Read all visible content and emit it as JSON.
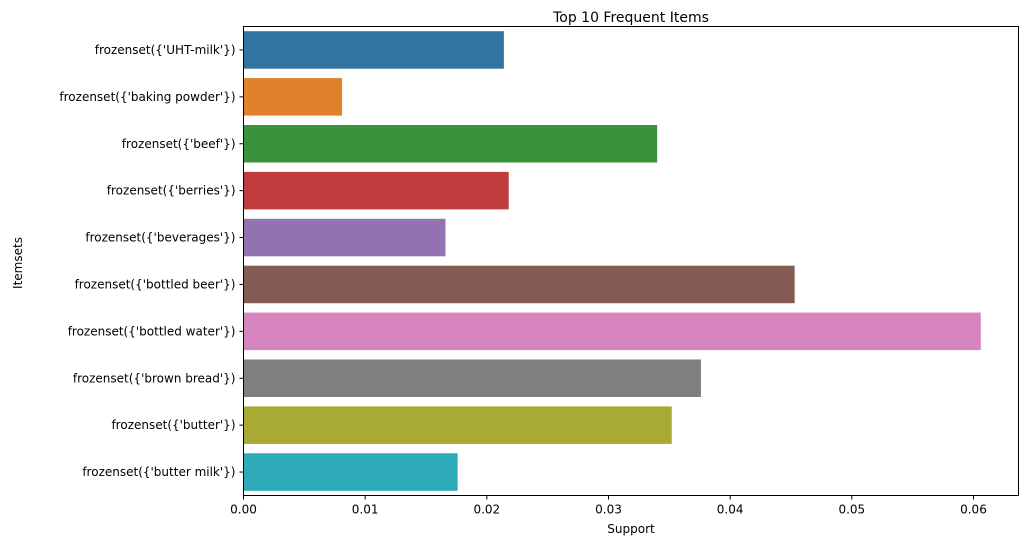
{
  "chart_data": {
    "type": "bar",
    "orientation": "horizontal",
    "title": "Top 10 Frequent Items",
    "xlabel": "Support",
    "ylabel": "Itemsets",
    "xlim": [
      0,
      0.0637
    ],
    "xticks": [
      0.0,
      0.01,
      0.02,
      0.03,
      0.04,
      0.05,
      0.06
    ],
    "xtick_labels": [
      "0.00",
      "0.01",
      "0.02",
      "0.03",
      "0.04",
      "0.05",
      "0.06"
    ],
    "grid": false,
    "legend": "none",
    "categories": [
      "frozenset({'UHT-milk'})",
      "frozenset({'baking powder'})",
      "frozenset({'beef'})",
      "frozenset({'berries'})",
      "frozenset({'beverages'})",
      "frozenset({'bottled beer'})",
      "frozenset({'bottled water'})",
      "frozenset({'brown bread'})",
      "frozenset({'butter'})",
      "frozenset({'butter milk'})"
    ],
    "values": [
      0.0214,
      0.0081,
      0.034,
      0.0218,
      0.0166,
      0.0453,
      0.0606,
      0.0376,
      0.0352,
      0.0176
    ],
    "colors": [
      "#3274a1",
      "#e1812c",
      "#3a923a",
      "#c03d3e",
      "#9372b2",
      "#845b53",
      "#d684bd",
      "#7f7f7f",
      "#a9aa35",
      "#2eabb8"
    ]
  }
}
